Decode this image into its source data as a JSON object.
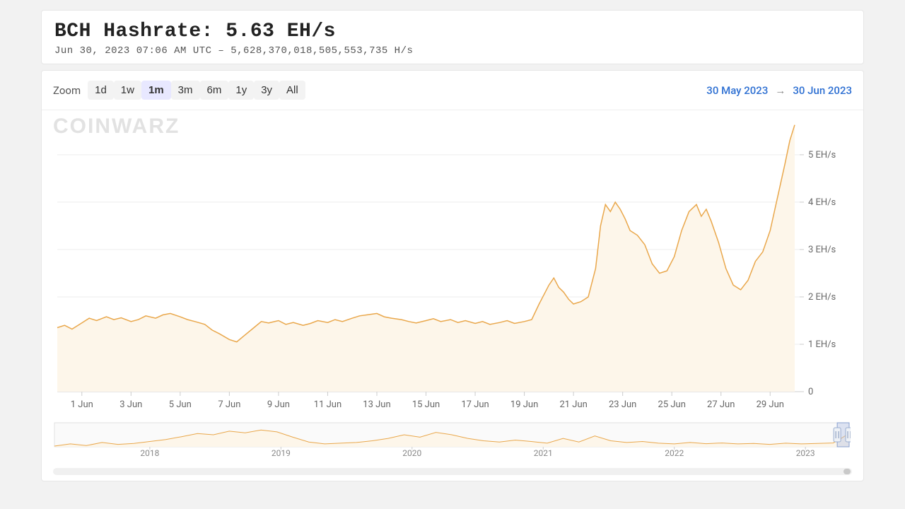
{
  "header": {
    "title": "BCH Hashrate: 5.63 EH/s",
    "subtitle": "Jun 30, 2023 07:06 AM UTC  –  5,628,370,018,505,553,735 H/s"
  },
  "toolbar": {
    "zoom_label": "Zoom",
    "ranges": [
      {
        "label": "1d",
        "active": false
      },
      {
        "label": "1w",
        "active": false
      },
      {
        "label": "1m",
        "active": true
      },
      {
        "label": "3m",
        "active": false
      },
      {
        "label": "6m",
        "active": false
      },
      {
        "label": "1y",
        "active": false
      },
      {
        "label": "3y",
        "active": false
      },
      {
        "label": "All",
        "active": false
      }
    ],
    "date_from": "30 May 2023",
    "date_to": "30 Jun 2023",
    "date_link_color": "#2d6fd2"
  },
  "chart": {
    "type": "area",
    "watermark": "COINWARZ",
    "line_color": "#e9a74b",
    "area_color": "#fdf6ea",
    "background_color": "#ffffff",
    "grid_color": "#eeeeee",
    "axis_text_color": "#666666",
    "axis_fontsize": 13,
    "y": {
      "unit": "EH/s",
      "min": 0,
      "max": 5.7,
      "ticks": [
        0,
        1,
        2,
        3,
        4,
        5
      ],
      "tick_labels": [
        "0",
        "1 EH/s",
        "2 EH/s",
        "3 EH/s",
        "4 EH/s",
        "5 EH/s"
      ]
    },
    "x": {
      "tick_labels": [
        "1 Jun",
        "3 Jun",
        "5 Jun",
        "7 Jun",
        "9 Jun",
        "11 Jun",
        "13 Jun",
        "15 Jun",
        "17 Jun",
        "19 Jun",
        "21 Jun",
        "23 Jun",
        "25 Jun",
        "27 Jun",
        "29 Jun"
      ],
      "tick_positions_days": [
        1,
        3,
        5,
        7,
        9,
        11,
        13,
        15,
        17,
        19,
        21,
        23,
        25,
        27,
        29
      ]
    },
    "series": [
      {
        "t": 0.0,
        "v": 1.35
      },
      {
        "t": 0.3,
        "v": 1.4
      },
      {
        "t": 0.6,
        "v": 1.32
      },
      {
        "t": 1.0,
        "v": 1.45
      },
      {
        "t": 1.3,
        "v": 1.55
      },
      {
        "t": 1.6,
        "v": 1.5
      },
      {
        "t": 2.0,
        "v": 1.58
      },
      {
        "t": 2.3,
        "v": 1.52
      },
      {
        "t": 2.6,
        "v": 1.56
      },
      {
        "t": 3.0,
        "v": 1.48
      },
      {
        "t": 3.3,
        "v": 1.52
      },
      {
        "t": 3.6,
        "v": 1.6
      },
      {
        "t": 4.0,
        "v": 1.55
      },
      {
        "t": 4.3,
        "v": 1.62
      },
      {
        "t": 4.6,
        "v": 1.65
      },
      {
        "t": 5.0,
        "v": 1.58
      },
      {
        "t": 5.3,
        "v": 1.52
      },
      {
        "t": 5.6,
        "v": 1.48
      },
      {
        "t": 6.0,
        "v": 1.42
      },
      {
        "t": 6.3,
        "v": 1.3
      },
      {
        "t": 6.6,
        "v": 1.22
      },
      {
        "t": 7.0,
        "v": 1.1
      },
      {
        "t": 7.3,
        "v": 1.05
      },
      {
        "t": 7.6,
        "v": 1.18
      },
      {
        "t": 8.0,
        "v": 1.35
      },
      {
        "t": 8.3,
        "v": 1.48
      },
      {
        "t": 8.6,
        "v": 1.45
      },
      {
        "t": 9.0,
        "v": 1.5
      },
      {
        "t": 9.3,
        "v": 1.42
      },
      {
        "t": 9.6,
        "v": 1.46
      },
      {
        "t": 10.0,
        "v": 1.4
      },
      {
        "t": 10.3,
        "v": 1.44
      },
      {
        "t": 10.6,
        "v": 1.5
      },
      {
        "t": 11.0,
        "v": 1.46
      },
      {
        "t": 11.3,
        "v": 1.52
      },
      {
        "t": 11.6,
        "v": 1.48
      },
      {
        "t": 12.0,
        "v": 1.55
      },
      {
        "t": 12.3,
        "v": 1.6
      },
      {
        "t": 12.6,
        "v": 1.62
      },
      {
        "t": 13.0,
        "v": 1.65
      },
      {
        "t": 13.3,
        "v": 1.58
      },
      {
        "t": 13.6,
        "v": 1.55
      },
      {
        "t": 14.0,
        "v": 1.52
      },
      {
        "t": 14.3,
        "v": 1.48
      },
      {
        "t": 14.6,
        "v": 1.45
      },
      {
        "t": 15.0,
        "v": 1.5
      },
      {
        "t": 15.3,
        "v": 1.54
      },
      {
        "t": 15.6,
        "v": 1.48
      },
      {
        "t": 16.0,
        "v": 1.52
      },
      {
        "t": 16.3,
        "v": 1.46
      },
      {
        "t": 16.6,
        "v": 1.5
      },
      {
        "t": 17.0,
        "v": 1.44
      },
      {
        "t": 17.3,
        "v": 1.48
      },
      {
        "t": 17.6,
        "v": 1.42
      },
      {
        "t": 18.0,
        "v": 1.46
      },
      {
        "t": 18.3,
        "v": 1.5
      },
      {
        "t": 18.6,
        "v": 1.44
      },
      {
        "t": 19.0,
        "v": 1.48
      },
      {
        "t": 19.3,
        "v": 1.52
      },
      {
        "t": 19.6,
        "v": 1.85
      },
      {
        "t": 20.0,
        "v": 2.25
      },
      {
        "t": 20.2,
        "v": 2.4
      },
      {
        "t": 20.4,
        "v": 2.2
      },
      {
        "t": 20.6,
        "v": 2.1
      },
      {
        "t": 20.8,
        "v": 1.95
      },
      {
        "t": 21.0,
        "v": 1.85
      },
      {
        "t": 21.3,
        "v": 1.9
      },
      {
        "t": 21.6,
        "v": 2.0
      },
      {
        "t": 21.9,
        "v": 2.6
      },
      {
        "t": 22.1,
        "v": 3.5
      },
      {
        "t": 22.3,
        "v": 3.95
      },
      {
        "t": 22.5,
        "v": 3.8
      },
      {
        "t": 22.7,
        "v": 4.0
      },
      {
        "t": 22.9,
        "v": 3.85
      },
      {
        "t": 23.1,
        "v": 3.65
      },
      {
        "t": 23.3,
        "v": 3.4
      },
      {
        "t": 23.6,
        "v": 3.3
      },
      {
        "t": 23.9,
        "v": 3.1
      },
      {
        "t": 24.2,
        "v": 2.7
      },
      {
        "t": 24.5,
        "v": 2.5
      },
      {
        "t": 24.8,
        "v": 2.55
      },
      {
        "t": 25.1,
        "v": 2.85
      },
      {
        "t": 25.4,
        "v": 3.4
      },
      {
        "t": 25.7,
        "v": 3.8
      },
      {
        "t": 26.0,
        "v": 3.95
      },
      {
        "t": 26.2,
        "v": 3.7
      },
      {
        "t": 26.4,
        "v": 3.85
      },
      {
        "t": 26.6,
        "v": 3.6
      },
      {
        "t": 26.9,
        "v": 3.15
      },
      {
        "t": 27.2,
        "v": 2.6
      },
      {
        "t": 27.5,
        "v": 2.25
      },
      {
        "t": 27.8,
        "v": 2.15
      },
      {
        "t": 28.1,
        "v": 2.35
      },
      {
        "t": 28.4,
        "v": 2.75
      },
      {
        "t": 28.7,
        "v": 2.95
      },
      {
        "t": 29.0,
        "v": 3.4
      },
      {
        "t": 29.3,
        "v": 4.1
      },
      {
        "t": 29.6,
        "v": 4.8
      },
      {
        "t": 29.8,
        "v": 5.3
      },
      {
        "t": 30.0,
        "v": 5.63
      }
    ],
    "x_domain": [
      0,
      30.2
    ]
  },
  "navigator": {
    "type": "area",
    "line_color": "#e9a74b",
    "area_color": "#fdf6ea",
    "background_color": "#fafafa",
    "year_labels": [
      "2018",
      "2019",
      "2020",
      "2021",
      "2022",
      "2023"
    ],
    "year_positions": [
      0.12,
      0.285,
      0.45,
      0.615,
      0.78,
      0.945
    ],
    "selection": {
      "from": 0.985,
      "to": 1.0
    },
    "y_max": 10,
    "series": [
      {
        "t": 0.0,
        "v": 0.3
      },
      {
        "t": 0.02,
        "v": 1.2
      },
      {
        "t": 0.04,
        "v": 0.5
      },
      {
        "t": 0.06,
        "v": 1.8
      },
      {
        "t": 0.08,
        "v": 1.0
      },
      {
        "t": 0.1,
        "v": 1.4
      },
      {
        "t": 0.12,
        "v": 2.2
      },
      {
        "t": 0.14,
        "v": 3.0
      },
      {
        "t": 0.16,
        "v": 4.2
      },
      {
        "t": 0.18,
        "v": 5.5
      },
      {
        "t": 0.2,
        "v": 5.0
      },
      {
        "t": 0.22,
        "v": 6.5
      },
      {
        "t": 0.24,
        "v": 5.8
      },
      {
        "t": 0.26,
        "v": 7.0
      },
      {
        "t": 0.28,
        "v": 6.2
      },
      {
        "t": 0.3,
        "v": 4.0
      },
      {
        "t": 0.32,
        "v": 2.0
      },
      {
        "t": 0.34,
        "v": 1.2
      },
      {
        "t": 0.36,
        "v": 1.5
      },
      {
        "t": 0.38,
        "v": 1.8
      },
      {
        "t": 0.4,
        "v": 2.5
      },
      {
        "t": 0.42,
        "v": 3.5
      },
      {
        "t": 0.44,
        "v": 5.0
      },
      {
        "t": 0.46,
        "v": 4.0
      },
      {
        "t": 0.48,
        "v": 6.0
      },
      {
        "t": 0.5,
        "v": 5.0
      },
      {
        "t": 0.52,
        "v": 3.5
      },
      {
        "t": 0.54,
        "v": 2.5
      },
      {
        "t": 0.56,
        "v": 2.0
      },
      {
        "t": 0.58,
        "v": 2.8
      },
      {
        "t": 0.6,
        "v": 2.2
      },
      {
        "t": 0.62,
        "v": 1.5
      },
      {
        "t": 0.64,
        "v": 3.5
      },
      {
        "t": 0.66,
        "v": 2.0
      },
      {
        "t": 0.68,
        "v": 4.5
      },
      {
        "t": 0.7,
        "v": 2.5
      },
      {
        "t": 0.72,
        "v": 1.8
      },
      {
        "t": 0.74,
        "v": 2.2
      },
      {
        "t": 0.76,
        "v": 1.5
      },
      {
        "t": 0.78,
        "v": 1.2
      },
      {
        "t": 0.8,
        "v": 1.8
      },
      {
        "t": 0.82,
        "v": 1.3
      },
      {
        "t": 0.84,
        "v": 1.6
      },
      {
        "t": 0.86,
        "v": 1.2
      },
      {
        "t": 0.88,
        "v": 1.4
      },
      {
        "t": 0.9,
        "v": 1.0
      },
      {
        "t": 0.92,
        "v": 1.5
      },
      {
        "t": 0.94,
        "v": 1.2
      },
      {
        "t": 0.96,
        "v": 1.4
      },
      {
        "t": 0.98,
        "v": 1.6
      },
      {
        "t": 0.99,
        "v": 3.5
      },
      {
        "t": 1.0,
        "v": 5.6
      }
    ]
  }
}
